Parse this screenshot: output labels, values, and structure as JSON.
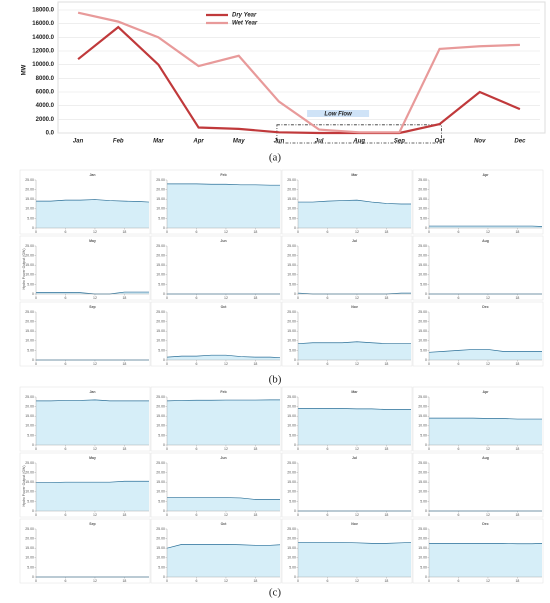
{
  "chart_data": [
    {
      "type": "line",
      "caption": "(a)",
      "ylabel": "MW",
      "categories": [
        "Jan",
        "Feb",
        "Mar",
        "Apr",
        "May",
        "Jun",
        "Jul",
        "Aug",
        "Sep",
        "Oct",
        "Nov",
        "Dec"
      ],
      "series": [
        {
          "name": "Dry Year",
          "color": "#c0393b",
          "values": [
            10800,
            15500,
            10000,
            800,
            600,
            100,
            0,
            0,
            0,
            1300,
            6000,
            3500
          ]
        },
        {
          "name": "Wet Year",
          "color": "#e89a9a",
          "values": [
            17600,
            16300,
            14000,
            9800,
            11300,
            4600,
            500,
            100,
            100,
            12300,
            12700,
            12900
          ]
        }
      ],
      "annotation": "Low Flow",
      "ylim": [
        0,
        18000
      ],
      "yticks": [
        {
          "value": 0,
          "label": "0.0"
        },
        {
          "value": 2000,
          "label": "2000.0"
        },
        {
          "value": 4000,
          "label": "4000.0"
        },
        {
          "value": 6000,
          "label": "6000.0"
        },
        {
          "value": 8000,
          "label": "8000.0"
        },
        {
          "value": 10000,
          "label": "10000.0"
        },
        {
          "value": 12000,
          "label": "12000.0"
        },
        {
          "value": 14000,
          "label": "14000.0"
        },
        {
          "value": 16000,
          "label": "16000.0"
        },
        {
          "value": 18000,
          "label": "18000.0"
        }
      ],
      "grid": true
    },
    {
      "type": "area_grid",
      "caption": "(b)",
      "ylabel": "Hydro Power Output (GW)",
      "color": "#d6eef8",
      "line_color": "#2a6f97",
      "x": [
        0,
        3,
        6,
        9,
        12,
        15,
        18,
        21,
        23
      ],
      "xlim": [
        0,
        23
      ],
      "xticks": [
        0,
        6,
        12,
        18
      ],
      "ylim": [
        0,
        25
      ],
      "yticks": [
        0,
        {
          "value": 5,
          "label": "5.00"
        },
        {
          "value": 10,
          "label": "10.00"
        },
        {
          "value": 15,
          "label": "15.00"
        },
        {
          "value": 20,
          "label": "20.00"
        },
        {
          "value": 25,
          "label": "25.00"
        }
      ],
      "panels": [
        {
          "title": "Jan",
          "values": [
            14,
            14,
            14.5,
            14.5,
            14.8,
            14.3,
            14,
            13.8,
            13.5
          ]
        },
        {
          "title": "Feb",
          "values": [
            23,
            23,
            23,
            22.8,
            22.8,
            22.5,
            22.5,
            22.3,
            22.3
          ]
        },
        {
          "title": "Mar",
          "values": [
            13.5,
            13.5,
            14,
            14.3,
            14.5,
            13.5,
            12.8,
            12.5,
            12.5
          ]
        },
        {
          "title": "Apr",
          "values": [
            1,
            1,
            1,
            1,
            1,
            1,
            1,
            1,
            0.8
          ]
        },
        {
          "title": "May",
          "values": [
            0.8,
            0.8,
            0.8,
            0.7,
            0,
            0,
            1,
            1,
            1
          ]
        },
        {
          "title": "Jun",
          "values": [
            0,
            0,
            0,
            0,
            0,
            0,
            0,
            0,
            0
          ]
        },
        {
          "title": "Jul",
          "values": [
            0.5,
            0,
            0,
            0,
            0,
            0,
            0,
            0.5,
            0.5
          ]
        },
        {
          "title": "Aug",
          "values": [
            0,
            0,
            0,
            0,
            0,
            0,
            0,
            0,
            0
          ]
        },
        {
          "title": "Sep",
          "values": [
            0,
            0,
            0,
            0,
            0,
            0,
            0,
            0,
            0
          ]
        },
        {
          "title": "Oct",
          "values": [
            1.5,
            2,
            2,
            2.5,
            2.5,
            1.8,
            1.5,
            1.5,
            1.2
          ]
        },
        {
          "title": "Nov",
          "values": [
            8.5,
            9,
            9,
            9,
            9.5,
            9,
            8.5,
            8.5,
            8.5
          ]
        },
        {
          "title": "Dec",
          "values": [
            4,
            4.5,
            5,
            5.5,
            5.5,
            4.5,
            4.5,
            4.5,
            4.5
          ]
        }
      ]
    },
    {
      "type": "area_grid",
      "caption": "(c)",
      "ylabel": "Hydro Power Output (GW)",
      "color": "#d6eef8",
      "line_color": "#2a6f97",
      "x": [
        0,
        3,
        6,
        9,
        12,
        15,
        18,
        21,
        23
      ],
      "xlim": [
        0,
        23
      ],
      "xticks": [
        0,
        6,
        12,
        18
      ],
      "ylim": [
        0,
        25
      ],
      "yticks": [
        0,
        {
          "value": 5,
          "label": "5.00"
        },
        {
          "value": 10,
          "label": "10.00"
        },
        {
          "value": 15,
          "label": "15.00"
        },
        {
          "value": 20,
          "label": "20.00"
        },
        {
          "value": 25,
          "label": "25.00"
        }
      ],
      "panels": [
        {
          "title": "Jan",
          "values": [
            23,
            23,
            23.2,
            23.2,
            23.5,
            23,
            23,
            23,
            23
          ]
        },
        {
          "title": "Feb",
          "values": [
            23,
            23.2,
            23.3,
            23.3,
            23.4,
            23.4,
            23.4,
            23.5,
            23.5
          ]
        },
        {
          "title": "Mar",
          "values": [
            19,
            19,
            19,
            19,
            18.8,
            18.8,
            18.5,
            18.5,
            18.5
          ]
        },
        {
          "title": "Apr",
          "values": [
            14,
            14,
            14,
            14,
            13.8,
            13.8,
            13.5,
            13.5,
            13.5
          ]
        },
        {
          "title": "May",
          "values": [
            14.8,
            14.8,
            15,
            15,
            15,
            15,
            15.5,
            15.5,
            15.5
          ]
        },
        {
          "title": "Jun",
          "values": [
            7,
            7,
            7,
            7,
            7,
            6.8,
            6,
            6,
            6
          ]
        },
        {
          "title": "Jul",
          "values": [
            0,
            0,
            0,
            0,
            0,
            0,
            0,
            0,
            0
          ]
        },
        {
          "title": "Aug",
          "values": [
            0,
            0,
            0,
            0,
            0,
            0,
            0,
            0,
            0
          ]
        },
        {
          "title": "Sep",
          "values": [
            0,
            0,
            0,
            0,
            0,
            0,
            0,
            0,
            0
          ]
        },
        {
          "title": "Oct",
          "values": [
            15,
            17,
            17,
            17,
            17,
            16.8,
            16.5,
            16.5,
            16.8
          ]
        },
        {
          "title": "Nov",
          "values": [
            18,
            18,
            18,
            18,
            17.8,
            17.5,
            17.5,
            17.8,
            18
          ]
        },
        {
          "title": "Dec",
          "values": [
            17.5,
            17.5,
            17.5,
            17.5,
            17.5,
            17.5,
            17.3,
            17.3,
            17.5
          ]
        }
      ]
    }
  ]
}
